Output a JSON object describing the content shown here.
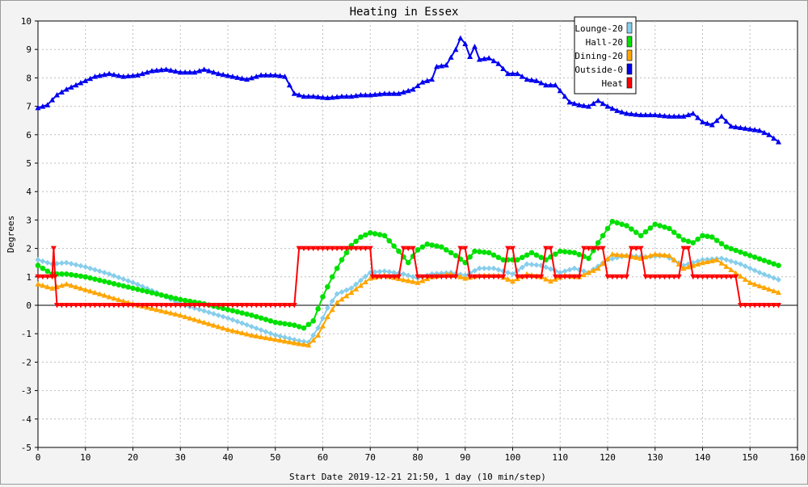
{
  "chart_data": {
    "type": "line",
    "title": "Heating in Essex",
    "xlabel": "Start Date 2019-12-21 21:50, 1 day (10 min/step)",
    "ylabel": "Degrees",
    "xlim": [
      0,
      160
    ],
    "ylim": [
      -5,
      10
    ],
    "xticks": [
      0,
      10,
      20,
      30,
      40,
      50,
      60,
      70,
      80,
      90,
      100,
      110,
      120,
      130,
      140,
      150,
      160
    ],
    "yticks": [
      -5,
      -4,
      -3,
      -2,
      -1,
      0,
      1,
      2,
      3,
      4,
      5,
      6,
      7,
      8,
      9,
      10
    ],
    "grid": true,
    "legend_position": "top-right",
    "series": [
      {
        "name": "Lounge-20",
        "color": "#87ceeb",
        "marker": "diamond",
        "points": [
          [
            0,
            1.6
          ],
          [
            3,
            1.45
          ],
          [
            6,
            1.5
          ],
          [
            10,
            1.35
          ],
          [
            15,
            1.1
          ],
          [
            20,
            0.8
          ],
          [
            25,
            0.45
          ],
          [
            30,
            0.05
          ],
          [
            35,
            -0.2
          ],
          [
            40,
            -0.45
          ],
          [
            45,
            -0.75
          ],
          [
            50,
            -1.05
          ],
          [
            55,
            -1.25
          ],
          [
            57,
            -1.3
          ],
          [
            59,
            -0.8
          ],
          [
            61,
            -0.1
          ],
          [
            63,
            0.4
          ],
          [
            66,
            0.6
          ],
          [
            70,
            1.15
          ],
          [
            73,
            1.2
          ],
          [
            77,
            1.1
          ],
          [
            80,
            0.95
          ],
          [
            83,
            1.1
          ],
          [
            87,
            1.15
          ],
          [
            90,
            1.05
          ],
          [
            93,
            1.3
          ],
          [
            96,
            1.3
          ],
          [
            100,
            1.1
          ],
          [
            103,
            1.45
          ],
          [
            106,
            1.4
          ],
          [
            110,
            1.15
          ],
          [
            113,
            1.3
          ],
          [
            116,
            1.15
          ],
          [
            120,
            1.6
          ],
          [
            124,
            1.75
          ],
          [
            128,
            1.7
          ],
          [
            132,
            1.75
          ],
          [
            136,
            1.4
          ],
          [
            140,
            1.6
          ],
          [
            144,
            1.65
          ],
          [
            148,
            1.45
          ],
          [
            152,
            1.15
          ],
          [
            156,
            0.9
          ]
        ]
      },
      {
        "name": "Hall-20",
        "color": "#00e000",
        "marker": "circle",
        "points": [
          [
            0,
            1.4
          ],
          [
            3,
            1.1
          ],
          [
            6,
            1.1
          ],
          [
            10,
            1.0
          ],
          [
            15,
            0.8
          ],
          [
            20,
            0.6
          ],
          [
            25,
            0.4
          ],
          [
            30,
            0.2
          ],
          [
            35,
            0.05
          ],
          [
            40,
            -0.15
          ],
          [
            45,
            -0.35
          ],
          [
            50,
            -0.6
          ],
          [
            54,
            -0.7
          ],
          [
            56,
            -0.8
          ],
          [
            58,
            -0.55
          ],
          [
            60,
            0.3
          ],
          [
            62,
            1.0
          ],
          [
            64,
            1.6
          ],
          [
            66,
            2.1
          ],
          [
            68,
            2.4
          ],
          [
            70,
            2.55
          ],
          [
            73,
            2.45
          ],
          [
            76,
            1.9
          ],
          [
            78,
            1.5
          ],
          [
            80,
            1.95
          ],
          [
            82,
            2.15
          ],
          [
            85,
            2.05
          ],
          [
            88,
            1.75
          ],
          [
            90,
            1.5
          ],
          [
            92,
            1.9
          ],
          [
            95,
            1.85
          ],
          [
            98,
            1.6
          ],
          [
            101,
            1.6
          ],
          [
            104,
            1.85
          ],
          [
            107,
            1.6
          ],
          [
            110,
            1.9
          ],
          [
            113,
            1.85
          ],
          [
            116,
            1.65
          ],
          [
            118,
            2.2
          ],
          [
            121,
            2.95
          ],
          [
            124,
            2.8
          ],
          [
            127,
            2.45
          ],
          [
            130,
            2.85
          ],
          [
            133,
            2.7
          ],
          [
            136,
            2.3
          ],
          [
            138,
            2.2
          ],
          [
            140,
            2.45
          ],
          [
            142,
            2.4
          ],
          [
            145,
            2.05
          ],
          [
            150,
            1.75
          ],
          [
            156,
            1.4
          ]
        ]
      },
      {
        "name": "Dining-20",
        "color": "#ffa500",
        "marker": "triangle",
        "points": [
          [
            0,
            0.75
          ],
          [
            3,
            0.6
          ],
          [
            6,
            0.75
          ],
          [
            10,
            0.55
          ],
          [
            15,
            0.3
          ],
          [
            20,
            0.05
          ],
          [
            25,
            -0.15
          ],
          [
            30,
            -0.35
          ],
          [
            35,
            -0.6
          ],
          [
            40,
            -0.85
          ],
          [
            45,
            -1.05
          ],
          [
            50,
            -1.2
          ],
          [
            55,
            -1.35
          ],
          [
            57,
            -1.4
          ],
          [
            59,
            -1.05
          ],
          [
            61,
            -0.4
          ],
          [
            63,
            0.1
          ],
          [
            66,
            0.45
          ],
          [
            70,
            0.95
          ],
          [
            73,
            1.05
          ],
          [
            77,
            0.9
          ],
          [
            80,
            0.8
          ],
          [
            83,
            1.0
          ],
          [
            87,
            1.1
          ],
          [
            90,
            0.95
          ],
          [
            93,
            1.05
          ],
          [
            97,
            1.05
          ],
          [
            100,
            0.85
          ],
          [
            103,
            1.1
          ],
          [
            106,
            1.0
          ],
          [
            108,
            0.85
          ],
          [
            111,
            1.05
          ],
          [
            114,
            1.0
          ],
          [
            118,
            1.3
          ],
          [
            121,
            1.8
          ],
          [
            124,
            1.75
          ],
          [
            127,
            1.65
          ],
          [
            130,
            1.8
          ],
          [
            133,
            1.75
          ],
          [
            136,
            1.3
          ],
          [
            140,
            1.5
          ],
          [
            143,
            1.6
          ],
          [
            146,
            1.25
          ],
          [
            150,
            0.8
          ],
          [
            156,
            0.45
          ]
        ]
      },
      {
        "name": "Outside-0",
        "color": "#0000ee",
        "marker": "triangle",
        "points": [
          [
            0,
            6.95
          ],
          [
            2,
            7.05
          ],
          [
            4,
            7.4
          ],
          [
            6,
            7.6
          ],
          [
            8,
            7.75
          ],
          [
            10,
            7.9
          ],
          [
            12,
            8.05
          ],
          [
            15,
            8.15
          ],
          [
            18,
            8.05
          ],
          [
            21,
            8.1
          ],
          [
            24,
            8.25
          ],
          [
            27,
            8.3
          ],
          [
            30,
            8.2
          ],
          [
            33,
            8.2
          ],
          [
            35,
            8.3
          ],
          [
            38,
            8.15
          ],
          [
            41,
            8.05
          ],
          [
            44,
            7.95
          ],
          [
            47,
            8.1
          ],
          [
            50,
            8.1
          ],
          [
            52,
            8.05
          ],
          [
            54,
            7.45
          ],
          [
            56,
            7.35
          ],
          [
            58,
            7.35
          ],
          [
            61,
            7.3
          ],
          [
            64,
            7.35
          ],
          [
            66,
            7.35
          ],
          [
            68,
            7.4
          ],
          [
            70,
            7.4
          ],
          [
            73,
            7.45
          ],
          [
            76,
            7.45
          ],
          [
            79,
            7.6
          ],
          [
            81,
            7.85
          ],
          [
            83,
            7.95
          ],
          [
            84,
            8.4
          ],
          [
            86,
            8.45
          ],
          [
            88,
            9.0
          ],
          [
            89,
            9.4
          ],
          [
            90,
            9.2
          ],
          [
            91,
            8.75
          ],
          [
            92,
            9.1
          ],
          [
            93,
            8.65
          ],
          [
            95,
            8.7
          ],
          [
            97,
            8.5
          ],
          [
            99,
            8.15
          ],
          [
            101,
            8.15
          ],
          [
            103,
            7.95
          ],
          [
            105,
            7.9
          ],
          [
            107,
            7.75
          ],
          [
            109,
            7.75
          ],
          [
            110,
            7.55
          ],
          [
            112,
            7.15
          ],
          [
            114,
            7.05
          ],
          [
            116,
            7.0
          ],
          [
            118,
            7.2
          ],
          [
            120,
            7.0
          ],
          [
            122,
            6.85
          ],
          [
            124,
            6.75
          ],
          [
            127,
            6.7
          ],
          [
            130,
            6.7
          ],
          [
            133,
            6.65
          ],
          [
            136,
            6.65
          ],
          [
            138,
            6.75
          ],
          [
            140,
            6.45
          ],
          [
            142,
            6.35
          ],
          [
            144,
            6.65
          ],
          [
            146,
            6.3
          ],
          [
            148,
            6.25
          ],
          [
            150,
            6.2
          ],
          [
            152,
            6.15
          ],
          [
            154,
            6.0
          ],
          [
            156,
            5.75
          ]
        ]
      },
      {
        "name": "Heat",
        "color": "#ff0000",
        "marker": "triangle-down",
        "points": [
          [
            0,
            1.0
          ],
          [
            3,
            1.0
          ],
          [
            3.3,
            2.0
          ],
          [
            3.6,
            1.0
          ],
          [
            4,
            0.0
          ],
          [
            54,
            0.0
          ],
          [
            55,
            2.0
          ],
          [
            70,
            2.0
          ],
          [
            70.5,
            1.0
          ],
          [
            76,
            1.0
          ],
          [
            77,
            2.0
          ],
          [
            79,
            2.0
          ],
          [
            80,
            1.0
          ],
          [
            88,
            1.0
          ],
          [
            89,
            2.0
          ],
          [
            90,
            2.0
          ],
          [
            91,
            1.0
          ],
          [
            98,
            1.0
          ],
          [
            99,
            2.0
          ],
          [
            100,
            2.0
          ],
          [
            101,
            1.0
          ],
          [
            106,
            1.0
          ],
          [
            107,
            2.0
          ],
          [
            108,
            2.0
          ],
          [
            109,
            1.0
          ],
          [
            114,
            1.0
          ],
          [
            115,
            2.0
          ],
          [
            119,
            2.0
          ],
          [
            120,
            1.0
          ],
          [
            124,
            1.0
          ],
          [
            125,
            2.0
          ],
          [
            127,
            2.0
          ],
          [
            128,
            1.0
          ],
          [
            135,
            1.0
          ],
          [
            136,
            2.0
          ],
          [
            137,
            2.0
          ],
          [
            138,
            1.0
          ],
          [
            147,
            1.0
          ],
          [
            148,
            0.0
          ],
          [
            156,
            0.0
          ]
        ]
      }
    ]
  }
}
